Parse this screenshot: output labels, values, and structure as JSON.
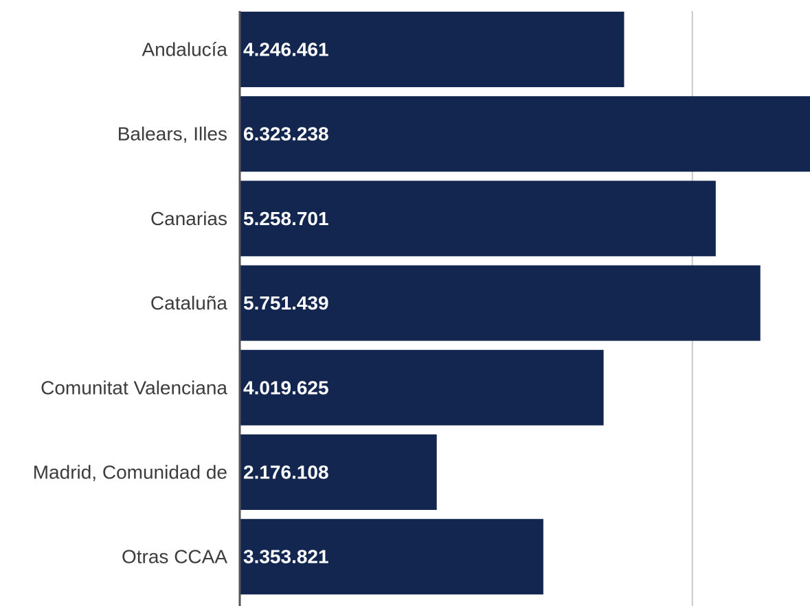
{
  "chart_data": {
    "type": "bar",
    "orientation": "horizontal",
    "title": "",
    "xlabel": "",
    "ylabel": "",
    "categories": [
      "Andalucía",
      "Balears, Illes",
      "Canarias",
      "Cataluña",
      "Comunitat Valenciana",
      "Madrid, Comunidad de",
      "Otras CCAA"
    ],
    "series": [
      {
        "values": [
          4246461,
          6323238,
          5258701,
          5751439,
          4019625,
          2176108,
          3353821
        ],
        "value_labels": [
          "4.246.461",
          "6.323.238",
          "5.258.701",
          "5.751.439",
          "4.019.625",
          "2.176.108",
          "3.353.821"
        ]
      }
    ],
    "xlim": [
      0,
      6300000
    ],
    "gridlines_x": [
      5000000
    ],
    "grid": true,
    "legend": "none",
    "bar_color": "#12264f",
    "axis_color": "#555555",
    "grid_color": "#c8c8c8"
  }
}
